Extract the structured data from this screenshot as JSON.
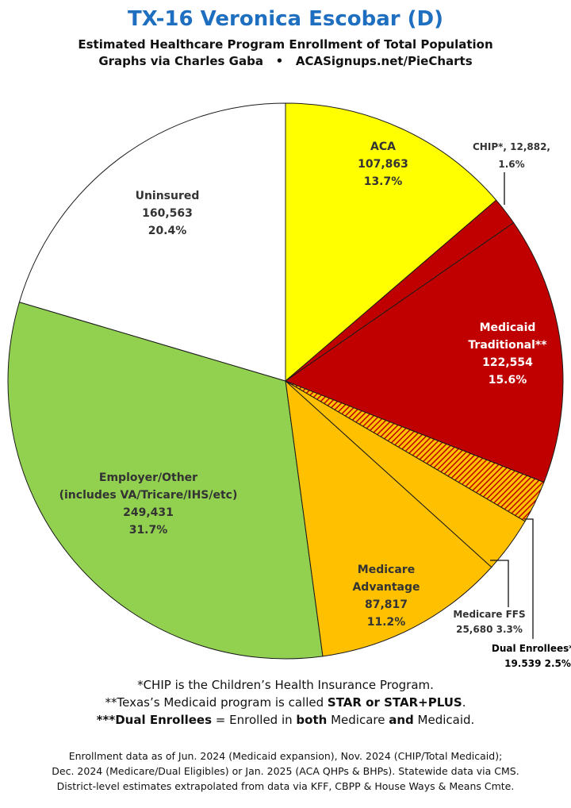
{
  "header": {
    "title": "TX-16 Veronica Escobar (D)",
    "subtitle": "Estimated Healthcare Program Enrollment of Total Population",
    "credit": "Graphs via Charles Gaba   •   ACASignups.net/PieCharts"
  },
  "chart_data": {
    "type": "pie",
    "title": "TX-16 Veronica Escobar (D)",
    "subtitle": "Estimated Healthcare Program Enrollment of Total Population",
    "slices": [
      {
        "key": "aca",
        "lines": [
          "ACA",
          "107,863",
          "13.7%"
        ],
        "value": 107863,
        "percent": 13.7,
        "color": "#ffff00",
        "pattern": false,
        "label_inside": true,
        "text_color": "#333333"
      },
      {
        "key": "chip",
        "lines": [
          "CHIP*, 12,882,",
          "1.6%"
        ],
        "value": 12882,
        "percent": 1.6,
        "color": "#c00000",
        "pattern": false,
        "label_inside": false,
        "text_color": "#333333"
      },
      {
        "key": "medicaid",
        "lines": [
          "Medicaid",
          "Traditional**",
          "122,554",
          "15.6%"
        ],
        "value": 122554,
        "percent": 15.6,
        "color": "#c00000",
        "pattern": false,
        "label_inside": true,
        "text_color": "#ffffff"
      },
      {
        "key": "dual",
        "lines": [
          "Dual Enrollees***",
          "19,539 2.5%"
        ],
        "value": 19539,
        "percent": 2.5,
        "color": "#ffc000",
        "pattern": true,
        "label_inside": false,
        "text_color": "#000000"
      },
      {
        "key": "ffs",
        "lines": [
          "Medicare FFS",
          "25,680 3.3%"
        ],
        "value": 25680,
        "percent": 3.3,
        "color": "#ffc000",
        "pattern": false,
        "label_inside": false,
        "text_color": "#333333"
      },
      {
        "key": "ma",
        "lines": [
          "Medicare",
          "Advantage",
          "87,817",
          "11.2%"
        ],
        "value": 87817,
        "percent": 11.2,
        "color": "#ffc000",
        "pattern": false,
        "label_inside": true,
        "text_color": "#333333"
      },
      {
        "key": "employer",
        "lines": [
          "Employer/Other",
          "(includes VA/Tricare/IHS/etc)",
          "249,431",
          "31.7%"
        ],
        "value": 249431,
        "percent": 31.7,
        "color": "#92d050",
        "pattern": false,
        "label_inside": true,
        "text_color": "#333333"
      },
      {
        "key": "uninsured",
        "lines": [
          "Uninsured",
          "160,563",
          "20.4%"
        ],
        "value": 160563,
        "percent": 20.4,
        "color": "#ffffff",
        "pattern": false,
        "label_inside": true,
        "text_color": "#333333"
      }
    ]
  },
  "notes": {
    "line1": "*CHIP is the Children’s Health Insurance Program.",
    "line2_pre": "**Texas’s Medicaid program is called ",
    "line2_bold": "STAR or STAR+PLUS",
    "line2_post": ".",
    "line3_bold1": "***Dual Enrollees",
    "line3_mid1": " = Enrolled in ",
    "line3_bold2": "both",
    "line3_mid2": " Medicare ",
    "line3_bold3": "and",
    "line3_post": " Medicaid."
  },
  "footer": {
    "line1": "Enrollment data as of Jun. 2024 (Medicaid expansion), Nov. 2024 (CHIP/Total Medicaid);",
    "line2": "Dec. 2024 (Medicare/Dual Eligibles) or Jan. 2025 (ACA QHPs & BHPs). Statewide data via CMS.",
    "line3": "District-level estimates extrapolated from data via KFF, CBPP & House Ways & Means Cmte."
  }
}
